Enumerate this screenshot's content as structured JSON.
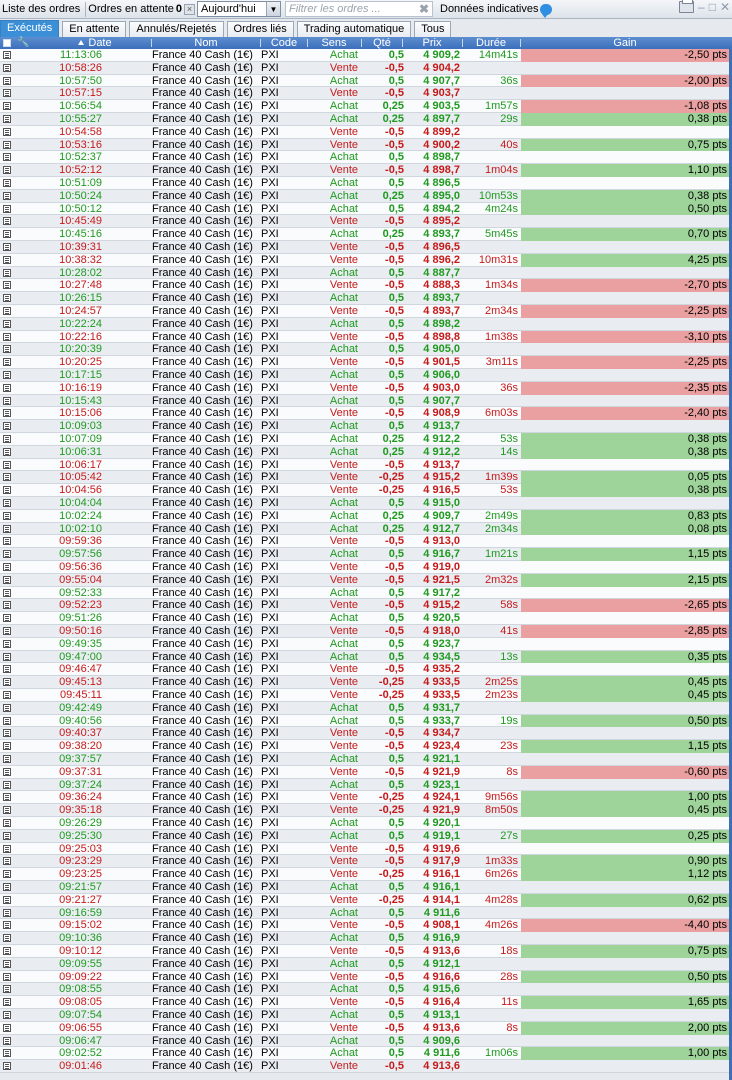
{
  "toolbar": {
    "orders_list": "Liste des ordres",
    "pending_orders": "Ordres en attente",
    "pending_count": "0",
    "date_filter": "Aujourd'hui",
    "filter_placeholder": "Filtrer les ordres ...",
    "indicative_data": "Données indicatives"
  },
  "tabs": [
    "Exécutés",
    "En attente",
    "Annulés/Rejetés",
    "Ordres liés",
    "Trading automatique",
    "Tous"
  ],
  "columns": {
    "date": "Date",
    "name": "Nom",
    "code": "Code",
    "side": "Sens",
    "qty": "Qté",
    "price": "Prix",
    "duration": "Durée",
    "gain": "Gain"
  },
  "colors": {
    "buy": "#1f9a1f",
    "sell": "#c61a1a",
    "gain_positive": "#9ed49a",
    "gain_negative": "#eaa0a0",
    "header": "#3c6fbc",
    "tab_active": "#3a8fd6"
  },
  "rows": [
    {
      "time": "11:13:06",
      "name": "France 40 Cash (1€)",
      "code": "PXI",
      "side": "Achat",
      "qty": "0,5",
      "price": "4 909,2",
      "dur": "14m41s",
      "gain": "-2,50 pts"
    },
    {
      "time": "10:58:26",
      "name": "France 40 Cash (1€)",
      "code": "PXI",
      "side": "Vente",
      "qty": "-0,5",
      "price": "4 904,2",
      "dur": "",
      "gain": ""
    },
    {
      "time": "10:57:50",
      "name": "France 40 Cash (1€)",
      "code": "PXI",
      "side": "Achat",
      "qty": "0,5",
      "price": "4 907,7",
      "dur": "36s",
      "gain": "-2,00 pts"
    },
    {
      "time": "10:57:15",
      "name": "France 40 Cash (1€)",
      "code": "PXI",
      "side": "Vente",
      "qty": "-0,5",
      "price": "4 903,7",
      "dur": "",
      "gain": ""
    },
    {
      "time": "10:56:54",
      "name": "France 40 Cash (1€)",
      "code": "PXI",
      "side": "Achat",
      "qty": "0,25",
      "price": "4 903,5",
      "dur": "1m57s",
      "gain": "-1,08 pts"
    },
    {
      "time": "10:55:27",
      "name": "France 40 Cash (1€)",
      "code": "PXI",
      "side": "Achat",
      "qty": "0,25",
      "price": "4 897,7",
      "dur": "29s",
      "gain": "0,38 pts"
    },
    {
      "time": "10:54:58",
      "name": "France 40 Cash (1€)",
      "code": "PXI",
      "side": "Vente",
      "qty": "-0,5",
      "price": "4 899,2",
      "dur": "",
      "gain": ""
    },
    {
      "time": "10:53:16",
      "name": "France 40 Cash (1€)",
      "code": "PXI",
      "side": "Vente",
      "qty": "-0,5",
      "price": "4 900,2",
      "dur": "40s",
      "gain": "0,75 pts"
    },
    {
      "time": "10:52:37",
      "name": "France 40 Cash (1€)",
      "code": "PXI",
      "side": "Achat",
      "qty": "0,5",
      "price": "4 898,7",
      "dur": "",
      "gain": ""
    },
    {
      "time": "10:52:12",
      "name": "France 40 Cash (1€)",
      "code": "PXI",
      "side": "Vente",
      "qty": "-0,5",
      "price": "4 898,7",
      "dur": "1m04s",
      "gain": "1,10 pts"
    },
    {
      "time": "10:51:09",
      "name": "France 40 Cash (1€)",
      "code": "PXI",
      "side": "Achat",
      "qty": "0,5",
      "price": "4 896,5",
      "dur": "",
      "gain": ""
    },
    {
      "time": "10:50:24",
      "name": "France 40 Cash (1€)",
      "code": "PXI",
      "side": "Achat",
      "qty": "0,25",
      "price": "4 895,0",
      "dur": "10m53s",
      "gain": "0,38 pts"
    },
    {
      "time": "10:50:12",
      "name": "France 40 Cash (1€)",
      "code": "PXI",
      "side": "Achat",
      "qty": "0,5",
      "price": "4 894,2",
      "dur": "4m24s",
      "gain": "0,50 pts"
    },
    {
      "time": "10:45:49",
      "name": "France 40 Cash (1€)",
      "code": "PXI",
      "side": "Vente",
      "qty": "-0,5",
      "price": "4 895,2",
      "dur": "",
      "gain": ""
    },
    {
      "time": "10:45:16",
      "name": "France 40 Cash (1€)",
      "code": "PXI",
      "side": "Achat",
      "qty": "0,25",
      "price": "4 893,7",
      "dur": "5m45s",
      "gain": "0,70 pts"
    },
    {
      "time": "10:39:31",
      "name": "France 40 Cash (1€)",
      "code": "PXI",
      "side": "Vente",
      "qty": "-0,5",
      "price": "4 896,5",
      "dur": "",
      "gain": ""
    },
    {
      "time": "10:38:32",
      "name": "France 40 Cash (1€)",
      "code": "PXI",
      "side": "Vente",
      "qty": "-0,5",
      "price": "4 896,2",
      "dur": "10m31s",
      "gain": "4,25 pts"
    },
    {
      "time": "10:28:02",
      "name": "France 40 Cash (1€)",
      "code": "PXI",
      "side": "Achat",
      "qty": "0,5",
      "price": "4 887,7",
      "dur": "",
      "gain": ""
    },
    {
      "time": "10:27:48",
      "name": "France 40 Cash (1€)",
      "code": "PXI",
      "side": "Vente",
      "qty": "-0,5",
      "price": "4 888,3",
      "dur": "1m34s",
      "gain": "-2,70 pts"
    },
    {
      "time": "10:26:15",
      "name": "France 40 Cash (1€)",
      "code": "PXI",
      "side": "Achat",
      "qty": "0,5",
      "price": "4 893,7",
      "dur": "",
      "gain": ""
    },
    {
      "time": "10:24:57",
      "name": "France 40 Cash (1€)",
      "code": "PXI",
      "side": "Vente",
      "qty": "-0,5",
      "price": "4 893,7",
      "dur": "2m34s",
      "gain": "-2,25 pts"
    },
    {
      "time": "10:22:24",
      "name": "France 40 Cash (1€)",
      "code": "PXI",
      "side": "Achat",
      "qty": "0,5",
      "price": "4 898,2",
      "dur": "",
      "gain": ""
    },
    {
      "time": "10:22:16",
      "name": "France 40 Cash (1€)",
      "code": "PXI",
      "side": "Vente",
      "qty": "-0,5",
      "price": "4 898,8",
      "dur": "1m38s",
      "gain": "-3,10 pts"
    },
    {
      "time": "10:20:39",
      "name": "France 40 Cash (1€)",
      "code": "PXI",
      "side": "Achat",
      "qty": "0,5",
      "price": "4 905,0",
      "dur": "",
      "gain": ""
    },
    {
      "time": "10:20:25",
      "name": "France 40 Cash (1€)",
      "code": "PXI",
      "side": "Vente",
      "qty": "-0,5",
      "price": "4 901,5",
      "dur": "3m11s",
      "gain": "-2,25 pts"
    },
    {
      "time": "10:17:15",
      "name": "France 40 Cash (1€)",
      "code": "PXI",
      "side": "Achat",
      "qty": "0,5",
      "price": "4 906,0",
      "dur": "",
      "gain": ""
    },
    {
      "time": "10:16:19",
      "name": "France 40 Cash (1€)",
      "code": "PXI",
      "side": "Vente",
      "qty": "-0,5",
      "price": "4 903,0",
      "dur": "36s",
      "gain": "-2,35 pts"
    },
    {
      "time": "10:15:43",
      "name": "France 40 Cash (1€)",
      "code": "PXI",
      "side": "Achat",
      "qty": "0,5",
      "price": "4 907,7",
      "dur": "",
      "gain": ""
    },
    {
      "time": "10:15:06",
      "name": "France 40 Cash (1€)",
      "code": "PXI",
      "side": "Vente",
      "qty": "-0,5",
      "price": "4 908,9",
      "dur": "6m03s",
      "gain": "-2,40 pts"
    },
    {
      "time": "10:09:03",
      "name": "France 40 Cash (1€)",
      "code": "PXI",
      "side": "Achat",
      "qty": "0,5",
      "price": "4 913,7",
      "dur": "",
      "gain": ""
    },
    {
      "time": "10:07:09",
      "name": "France 40 Cash (1€)",
      "code": "PXI",
      "side": "Achat",
      "qty": "0,25",
      "price": "4 912,2",
      "dur": "53s",
      "gain": "0,38 pts"
    },
    {
      "time": "10:06:31",
      "name": "France 40 Cash (1€)",
      "code": "PXI",
      "side": "Achat",
      "qty": "0,25",
      "price": "4 912,2",
      "dur": "14s",
      "gain": "0,38 pts"
    },
    {
      "time": "10:06:17",
      "name": "France 40 Cash (1€)",
      "code": "PXI",
      "side": "Vente",
      "qty": "-0,5",
      "price": "4 913,7",
      "dur": "",
      "gain": ""
    },
    {
      "time": "10:05:42",
      "name": "France 40 Cash (1€)",
      "code": "PXI",
      "side": "Vente",
      "qty": "-0,25",
      "price": "4 915,2",
      "dur": "1m39s",
      "gain": "0,05 pts"
    },
    {
      "time": "10:04:56",
      "name": "France 40 Cash (1€)",
      "code": "PXI",
      "side": "Vente",
      "qty": "-0,25",
      "price": "4 916,5",
      "dur": "53s",
      "gain": "0,38 pts"
    },
    {
      "time": "10:04:04",
      "name": "France 40 Cash (1€)",
      "code": "PXI",
      "side": "Achat",
      "qty": "0,5",
      "price": "4 915,0",
      "dur": "",
      "gain": ""
    },
    {
      "time": "10:02:24",
      "name": "France 40 Cash (1€)",
      "code": "PXI",
      "side": "Achat",
      "qty": "0,25",
      "price": "4 909,7",
      "dur": "2m49s",
      "gain": "0,83 pts"
    },
    {
      "time": "10:02:10",
      "name": "France 40 Cash (1€)",
      "code": "PXI",
      "side": "Achat",
      "qty": "0,25",
      "price": "4 912,7",
      "dur": "2m34s",
      "gain": "0,08 pts"
    },
    {
      "time": "09:59:36",
      "name": "France 40 Cash (1€)",
      "code": "PXI",
      "side": "Vente",
      "qty": "-0,5",
      "price": "4 913,0",
      "dur": "",
      "gain": ""
    },
    {
      "time": "09:57:56",
      "name": "France 40 Cash (1€)",
      "code": "PXI",
      "side": "Achat",
      "qty": "0,5",
      "price": "4 916,7",
      "dur": "1m21s",
      "gain": "1,15 pts"
    },
    {
      "time": "09:56:36",
      "name": "France 40 Cash (1€)",
      "code": "PXI",
      "side": "Vente",
      "qty": "-0,5",
      "price": "4 919,0",
      "dur": "",
      "gain": ""
    },
    {
      "time": "09:55:04",
      "name": "France 40 Cash (1€)",
      "code": "PXI",
      "side": "Vente",
      "qty": "-0,5",
      "price": "4 921,5",
      "dur": "2m32s",
      "gain": "2,15 pts"
    },
    {
      "time": "09:52:33",
      "name": "France 40 Cash (1€)",
      "code": "PXI",
      "side": "Achat",
      "qty": "0,5",
      "price": "4 917,2",
      "dur": "",
      "gain": ""
    },
    {
      "time": "09:52:23",
      "name": "France 40 Cash (1€)",
      "code": "PXI",
      "side": "Vente",
      "qty": "-0,5",
      "price": "4 915,2",
      "dur": "58s",
      "gain": "-2,65 pts"
    },
    {
      "time": "09:51:26",
      "name": "France 40 Cash (1€)",
      "code": "PXI",
      "side": "Achat",
      "qty": "0,5",
      "price": "4 920,5",
      "dur": "",
      "gain": ""
    },
    {
      "time": "09:50:16",
      "name": "France 40 Cash (1€)",
      "code": "PXI",
      "side": "Vente",
      "qty": "-0,5",
      "price": "4 918,0",
      "dur": "41s",
      "gain": "-2,85 pts"
    },
    {
      "time": "09:49:35",
      "name": "France 40 Cash (1€)",
      "code": "PXI",
      "side": "Achat",
      "qty": "0,5",
      "price": "4 923,7",
      "dur": "",
      "gain": ""
    },
    {
      "time": "09:47:00",
      "name": "France 40 Cash (1€)",
      "code": "PXI",
      "side": "Achat",
      "qty": "0,5",
      "price": "4 934,5",
      "dur": "13s",
      "gain": "0,35 pts"
    },
    {
      "time": "09:46:47",
      "name": "France 40 Cash (1€)",
      "code": "PXI",
      "side": "Vente",
      "qty": "-0,5",
      "price": "4 935,2",
      "dur": "",
      "gain": ""
    },
    {
      "time": "09:45:13",
      "name": "France 40 Cash (1€)",
      "code": "PXI",
      "side": "Vente",
      "qty": "-0,25",
      "price": "4 933,5",
      "dur": "2m25s",
      "gain": "0,45 pts"
    },
    {
      "time": "09:45:11",
      "name": "France 40 Cash (1€)",
      "code": "PXI",
      "side": "Vente",
      "qty": "-0,25",
      "price": "4 933,5",
      "dur": "2m23s",
      "gain": "0,45 pts"
    },
    {
      "time": "09:42:49",
      "name": "France 40 Cash (1€)",
      "code": "PXI",
      "side": "Achat",
      "qty": "0,5",
      "price": "4 931,7",
      "dur": "",
      "gain": ""
    },
    {
      "time": "09:40:56",
      "name": "France 40 Cash (1€)",
      "code": "PXI",
      "side": "Achat",
      "qty": "0,5",
      "price": "4 933,7",
      "dur": "19s",
      "gain": "0,50 pts"
    },
    {
      "time": "09:40:37",
      "name": "France 40 Cash (1€)",
      "code": "PXI",
      "side": "Vente",
      "qty": "-0,5",
      "price": "4 934,7",
      "dur": "",
      "gain": ""
    },
    {
      "time": "09:38:20",
      "name": "France 40 Cash (1€)",
      "code": "PXI",
      "side": "Vente",
      "qty": "-0,5",
      "price": "4 923,4",
      "dur": "23s",
      "gain": "1,15 pts"
    },
    {
      "time": "09:37:57",
      "name": "France 40 Cash (1€)",
      "code": "PXI",
      "side": "Achat",
      "qty": "0,5",
      "price": "4 921,1",
      "dur": "",
      "gain": ""
    },
    {
      "time": "09:37:31",
      "name": "France 40 Cash (1€)",
      "code": "PXI",
      "side": "Vente",
      "qty": "-0,5",
      "price": "4 921,9",
      "dur": "8s",
      "gain": "-0,60 pts"
    },
    {
      "time": "09:37:24",
      "name": "France 40 Cash (1€)",
      "code": "PXI",
      "side": "Achat",
      "qty": "0,5",
      "price": "4 923,1",
      "dur": "",
      "gain": ""
    },
    {
      "time": "09:36:24",
      "name": "France 40 Cash (1€)",
      "code": "PXI",
      "side": "Vente",
      "qty": "-0,25",
      "price": "4 924,1",
      "dur": "9m56s",
      "gain": "1,00 pts"
    },
    {
      "time": "09:35:18",
      "name": "France 40 Cash (1€)",
      "code": "PXI",
      "side": "Vente",
      "qty": "-0,25",
      "price": "4 921,9",
      "dur": "8m50s",
      "gain": "0,45 pts"
    },
    {
      "time": "09:26:29",
      "name": "France 40 Cash (1€)",
      "code": "PXI",
      "side": "Achat",
      "qty": "0,5",
      "price": "4 920,1",
      "dur": "",
      "gain": ""
    },
    {
      "time": "09:25:30",
      "name": "France 40 Cash (1€)",
      "code": "PXI",
      "side": "Achat",
      "qty": "0,5",
      "price": "4 919,1",
      "dur": "27s",
      "gain": "0,25 pts"
    },
    {
      "time": "09:25:03",
      "name": "France 40 Cash (1€)",
      "code": "PXI",
      "side": "Vente",
      "qty": "-0,5",
      "price": "4 919,6",
      "dur": "",
      "gain": ""
    },
    {
      "time": "09:23:29",
      "name": "France 40 Cash (1€)",
      "code": "PXI",
      "side": "Vente",
      "qty": "-0,5",
      "price": "4 917,9",
      "dur": "1m33s",
      "gain": "0,90 pts"
    },
    {
      "time": "09:23:25",
      "name": "France 40 Cash (1€)",
      "code": "PXI",
      "side": "Vente",
      "qty": "-0,25",
      "price": "4 916,1",
      "dur": "6m26s",
      "gain": "1,12 pts"
    },
    {
      "time": "09:21:57",
      "name": "France 40 Cash (1€)",
      "code": "PXI",
      "side": "Achat",
      "qty": "0,5",
      "price": "4 916,1",
      "dur": "",
      "gain": ""
    },
    {
      "time": "09:21:27",
      "name": "France 40 Cash (1€)",
      "code": "PXI",
      "side": "Vente",
      "qty": "-0,25",
      "price": "4 914,1",
      "dur": "4m28s",
      "gain": "0,62 pts"
    },
    {
      "time": "09:16:59",
      "name": "France 40 Cash (1€)",
      "code": "PXI",
      "side": "Achat",
      "qty": "0,5",
      "price": "4 911,6",
      "dur": "",
      "gain": ""
    },
    {
      "time": "09:15:02",
      "name": "France 40 Cash (1€)",
      "code": "PXI",
      "side": "Vente",
      "qty": "-0,5",
      "price": "4 908,1",
      "dur": "4m26s",
      "gain": "-4,40 pts"
    },
    {
      "time": "09:10:36",
      "name": "France 40 Cash (1€)",
      "code": "PXI",
      "side": "Achat",
      "qty": "0,5",
      "price": "4 916,9",
      "dur": "",
      "gain": ""
    },
    {
      "time": "09:10:12",
      "name": "France 40 Cash (1€)",
      "code": "PXI",
      "side": "Vente",
      "qty": "-0,5",
      "price": "4 913,6",
      "dur": "18s",
      "gain": "0,75 pts"
    },
    {
      "time": "09:09:55",
      "name": "France 40 Cash (1€)",
      "code": "PXI",
      "side": "Achat",
      "qty": "0,5",
      "price": "4 912,1",
      "dur": "",
      "gain": ""
    },
    {
      "time": "09:09:22",
      "name": "France 40 Cash (1€)",
      "code": "PXI",
      "side": "Vente",
      "qty": "-0,5",
      "price": "4 916,6",
      "dur": "28s",
      "gain": "0,50 pts"
    },
    {
      "time": "09:08:55",
      "name": "France 40 Cash (1€)",
      "code": "PXI",
      "side": "Achat",
      "qty": "0,5",
      "price": "4 915,6",
      "dur": "",
      "gain": ""
    },
    {
      "time": "09:08:05",
      "name": "France 40 Cash (1€)",
      "code": "PXI",
      "side": "Vente",
      "qty": "-0,5",
      "price": "4 916,4",
      "dur": "11s",
      "gain": "1,65 pts"
    },
    {
      "time": "09:07:54",
      "name": "France 40 Cash (1€)",
      "code": "PXI",
      "side": "Achat",
      "qty": "0,5",
      "price": "4 913,1",
      "dur": "",
      "gain": ""
    },
    {
      "time": "09:06:55",
      "name": "France 40 Cash (1€)",
      "code": "PXI",
      "side": "Vente",
      "qty": "-0,5",
      "price": "4 913,6",
      "dur": "8s",
      "gain": "2,00 pts"
    },
    {
      "time": "09:06:47",
      "name": "France 40 Cash (1€)",
      "code": "PXI",
      "side": "Achat",
      "qty": "0,5",
      "price": "4 909,6",
      "dur": "",
      "gain": ""
    },
    {
      "time": "09:02:52",
      "name": "France 40 Cash (1€)",
      "code": "PXI",
      "side": "Achat",
      "qty": "0,5",
      "price": "4 911,6",
      "dur": "1m06s",
      "gain": "1,00 pts"
    },
    {
      "time": "09:01:46",
      "name": "France 40 Cash (1€)",
      "code": "PXI",
      "side": "Vente",
      "qty": "-0,5",
      "price": "4 913,6",
      "dur": "",
      "gain": ""
    }
  ]
}
